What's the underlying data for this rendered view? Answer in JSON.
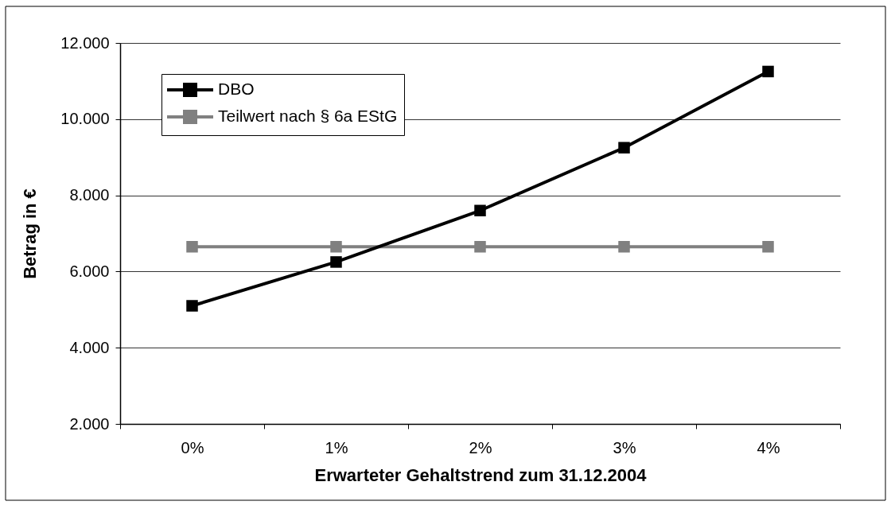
{
  "chart_data": {
    "type": "line",
    "xlabel": "Erwarteter Gehaltstrend zum 31.12.2004",
    "ylabel": "Betrag in €",
    "categories": [
      "0%",
      "1%",
      "2%",
      "3%",
      "4%"
    ],
    "series": [
      {
        "name": "DBO",
        "color": "#000000",
        "values": [
          5100,
          6250,
          7600,
          9250,
          11250
        ]
      },
      {
        "name": "Teilwert nach § 6a EStG",
        "color": "#808080",
        "values": [
          6650,
          6650,
          6650,
          6650,
          6650
        ]
      }
    ],
    "ylim": [
      2000,
      12000
    ],
    "yticks": [
      {
        "value": 2000,
        "label": "2.000"
      },
      {
        "value": 4000,
        "label": "4.000"
      },
      {
        "value": 6000,
        "label": "6.000"
      },
      {
        "value": 8000,
        "label": "8.000"
      },
      {
        "value": 10000,
        "label": "10.000"
      },
      {
        "value": 12000,
        "label": "12.000"
      }
    ],
    "grid": "y",
    "legend": "top left",
    "marker": "square",
    "line_style": "solid"
  }
}
